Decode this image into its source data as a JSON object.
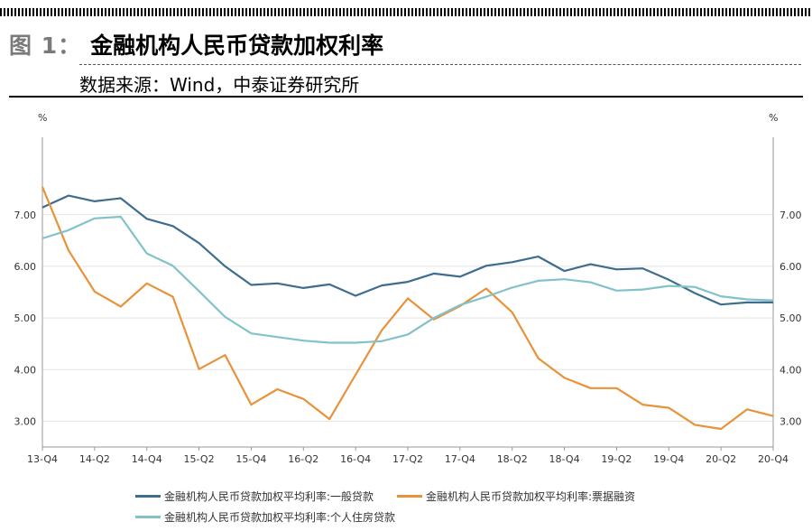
{
  "header": {
    "figure_label": "图 1：",
    "title": "金融机构人民币贷款加权利率",
    "source": "数据来源：Wind，中泰证券研究所"
  },
  "chart_data": {
    "type": "line",
    "unit_left": "%",
    "unit_right": "%",
    "ylim": [
      2.5,
      8.5
    ],
    "yticks": [
      3.0,
      4.0,
      5.0,
      6.0,
      7.0
    ],
    "ytick_labels": [
      "3.00",
      "4.00",
      "5.00",
      "6.00",
      "7.00"
    ],
    "x": [
      "13-Q4",
      "14-Q1",
      "14-Q2",
      "14-Q3",
      "14-Q4",
      "15-Q1",
      "15-Q2",
      "15-Q3",
      "15-Q4",
      "16-Q1",
      "16-Q2",
      "16-Q3",
      "16-Q4",
      "17-Q1",
      "17-Q2",
      "17-Q3",
      "17-Q4",
      "18-Q1",
      "18-Q2",
      "18-Q3",
      "18-Q4",
      "19-Q1",
      "19-Q2",
      "19-Q3",
      "19-Q4",
      "20-Q1",
      "20-Q2",
      "20-Q3",
      "20-Q4"
    ],
    "xtick_labels": [
      "13-Q4",
      "14-Q2",
      "14-Q4",
      "15-Q2",
      "15-Q4",
      "16-Q2",
      "16-Q4",
      "17-Q2",
      "17-Q4",
      "18-Q2",
      "18-Q4",
      "19-Q2",
      "19-Q4",
      "20-Q2",
      "20-Q4"
    ],
    "grid": true,
    "legend_position": "bottom",
    "series": [
      {
        "name": "金融机构人民币贷款加权平均利率:一般贷款",
        "color": "#3e6d8e",
        "values": [
          7.14,
          7.37,
          7.26,
          7.32,
          6.92,
          6.78,
          6.45,
          6.0,
          5.64,
          5.67,
          5.58,
          5.65,
          5.43,
          5.63,
          5.7,
          5.86,
          5.8,
          6.01,
          6.08,
          6.19,
          5.91,
          6.04,
          5.94,
          5.96,
          5.74,
          5.48,
          5.26,
          5.3,
          5.3
        ]
      },
      {
        "name": "金融机构人民币贷款加权平均利率:票据融资",
        "color": "#e8923a",
        "values": [
          7.54,
          6.31,
          5.51,
          5.22,
          5.67,
          5.41,
          4.01,
          4.28,
          3.32,
          3.62,
          3.43,
          3.04,
          3.9,
          4.76,
          5.38,
          4.97,
          5.23,
          5.57,
          5.11,
          4.22,
          3.84,
          3.64,
          3.64,
          3.32,
          3.26,
          2.93,
          2.85,
          3.23,
          3.1
        ]
      },
      {
        "name": "金融机构人民币贷款加权平均利率:个人住房贷款",
        "color": "#82c2c8",
        "values": [
          6.54,
          6.7,
          6.93,
          6.96,
          6.25,
          6.01,
          5.52,
          5.02,
          4.7,
          4.63,
          4.56,
          4.52,
          4.52,
          4.55,
          4.68,
          5.0,
          5.25,
          5.41,
          5.59,
          5.72,
          5.75,
          5.69,
          5.53,
          5.55,
          5.62,
          5.6,
          5.42,
          5.36,
          5.34
        ]
      }
    ]
  }
}
